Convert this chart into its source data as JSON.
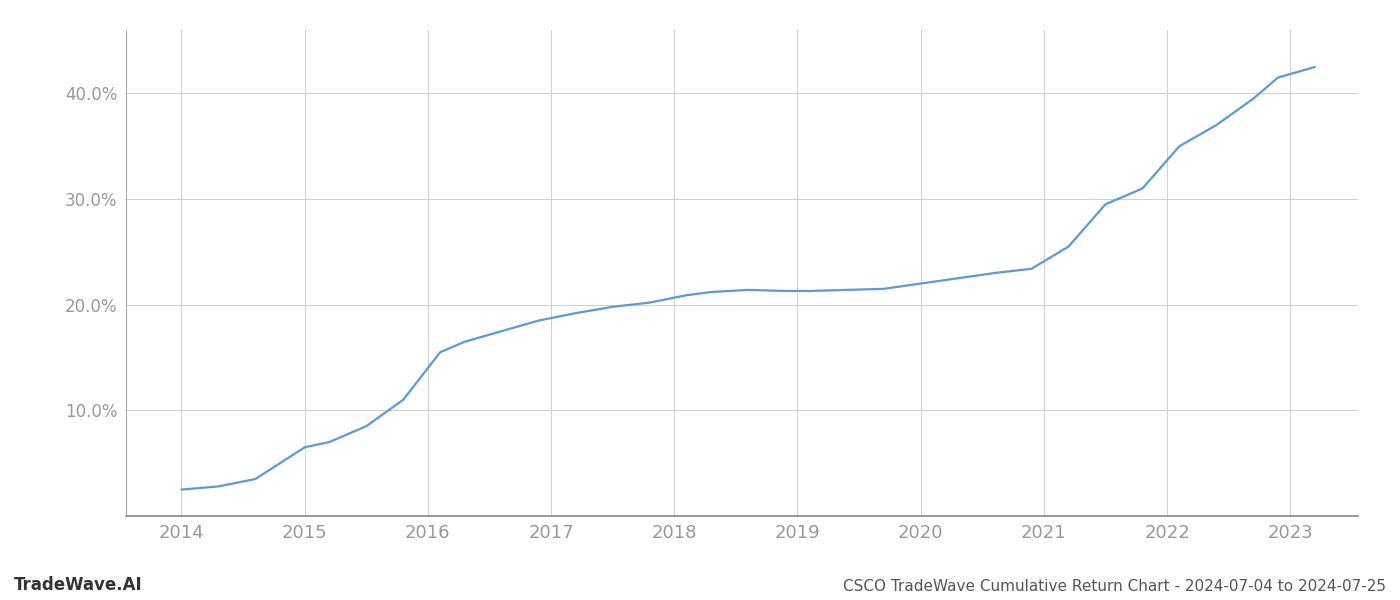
{
  "x_values": [
    2014.0,
    2014.3,
    2014.6,
    2015.0,
    2015.2,
    2015.5,
    2015.8,
    2016.1,
    2016.3,
    2016.6,
    2016.9,
    2017.2,
    2017.5,
    2017.8,
    2018.1,
    2018.3,
    2018.6,
    2018.9,
    2019.1,
    2019.4,
    2019.7,
    2020.0,
    2020.3,
    2020.6,
    2020.9,
    2021.2,
    2021.5,
    2021.8,
    2022.1,
    2022.4,
    2022.7,
    2022.9,
    2023.2
  ],
  "y_values": [
    2.5,
    2.8,
    3.5,
    6.5,
    7.0,
    8.5,
    11.0,
    15.5,
    16.5,
    17.5,
    18.5,
    19.2,
    19.8,
    20.2,
    20.9,
    21.2,
    21.4,
    21.3,
    21.3,
    21.4,
    21.5,
    22.0,
    22.5,
    23.0,
    23.4,
    25.5,
    29.5,
    31.0,
    35.0,
    37.0,
    39.5,
    41.5,
    42.5
  ],
  "line_color": "#5b9bd5",
  "line_width": 1.6,
  "xlim": [
    2013.55,
    2023.55
  ],
  "ylim": [
    0,
    46
  ],
  "yticks": [
    10.0,
    20.0,
    30.0,
    40.0
  ],
  "ytick_labels": [
    "10.0%",
    "20.0%",
    "30.0%",
    "40.0%"
  ],
  "xticks": [
    2014,
    2015,
    2016,
    2017,
    2018,
    2019,
    2020,
    2021,
    2022,
    2023
  ],
  "footer_left": "TradeWave.AI",
  "footer_right": "CSCO TradeWave Cumulative Return Chart - 2024-07-04 to 2024-07-25",
  "background_color": "#ffffff",
  "grid_color": "#d0d0d0",
  "tick_color": "#999999",
  "footer_color_left": "#333333",
  "footer_color_right": "#555555"
}
